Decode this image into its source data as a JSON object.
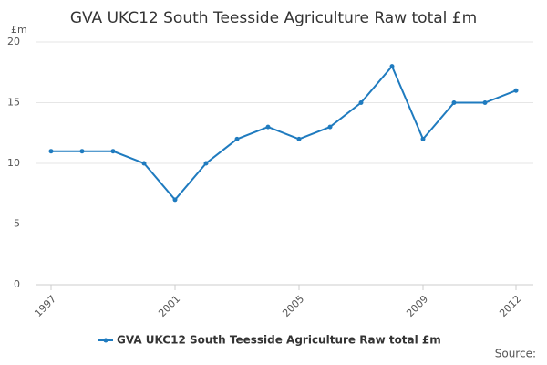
{
  "chart_data": {
    "type": "line",
    "title": "GVA UKC12 South Teesside Agriculture Raw total £m",
    "y_label": "£m",
    "x": [
      1997,
      1998,
      1999,
      2000,
      2001,
      2002,
      2003,
      2004,
      2005,
      2006,
      2007,
      2008,
      2009,
      2010,
      2011,
      2012
    ],
    "series": [
      {
        "name": "GVA UKC12 South Teesside Agriculture Raw total £m",
        "color": "#1f7bbf",
        "values": [
          11,
          11,
          11,
          10,
          7,
          10,
          12,
          13,
          12,
          13,
          15,
          18,
          12,
          15,
          15,
          16
        ]
      }
    ],
    "xlim": [
      1997,
      2012
    ],
    "xticks": [
      1997,
      2001,
      2005,
      2009,
      2012
    ],
    "ylim": [
      0,
      20
    ],
    "yticks": [
      0,
      5,
      10,
      15,
      20
    ],
    "grid": true,
    "legend": "bottom",
    "source": "Source:"
  }
}
